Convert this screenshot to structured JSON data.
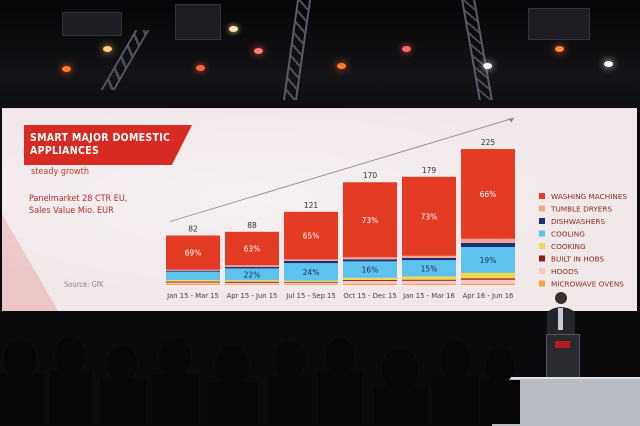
{
  "slide": {
    "title_line1": "SMART MAJOR DOMESTIC",
    "title_line2": "APPLIANCES",
    "subtitle": "steady growth",
    "panel_line1": "Panelmarket 28 CTR EU,",
    "panel_line2": "Sales Value Mio. EUR",
    "source": "Source: GfK"
  },
  "colors": {
    "washing_machines": "#e33b24",
    "tumble_dryers": "#f0a58f",
    "dishwashers": "#1d2f7a",
    "cooling": "#5ec2ee",
    "cooking": "#f2d84a",
    "built_in_hobs": "#8e1b1b",
    "hoods": "#f7c6c8",
    "microwave_ovens": "#f3a13a",
    "banner": "#d62a22",
    "slide_background": "#f1e8ea"
  },
  "chart_data": {
    "type": "bar",
    "stacked": true,
    "categories": [
      "Jan 15 - Mar 15",
      "Apr 15 - Jun 15",
      "Jul 15 - Sep 15",
      "Oct 15 - Dec 15",
      "Jan 15 - Mar 16",
      "Apr 16 - Jun 16"
    ],
    "totals": [
      82,
      88,
      121,
      170,
      179,
      225
    ],
    "ylim": [
      0,
      225
    ],
    "legend_position": "right",
    "trend_arrow": true,
    "grid": false,
    "series": [
      {
        "name": "WASHING MACHINES",
        "color_key": "washing_machines",
        "values": [
          56.6,
          55.4,
          78.7,
          124.1,
          130.7,
          148.5
        ],
        "labels": [
          "69%",
          "63%",
          "65%",
          "73%",
          "73%",
          "66%"
        ]
      },
      {
        "name": "TUMBLE DRYERS",
        "color_key": "tumble_dryers",
        "values": [
          1.6,
          2.6,
          2.4,
          3.4,
          3.6,
          6.8
        ],
        "labels": [
          "",
          "",
          "",
          "",
          "",
          ""
        ]
      },
      {
        "name": "DISHWASHERS",
        "color_key": "dishwashers",
        "values": [
          1.6,
          2.6,
          3.6,
          3.4,
          3.6,
          6.8
        ],
        "labels": [
          "",
          "",
          "",
          "",
          "",
          ""
        ]
      },
      {
        "name": "COOLING",
        "color_key": "cooling",
        "values": [
          13.9,
          19.4,
          29.0,
          27.2,
          26.9,
          42.8
        ],
        "labels": [
          "",
          "22%",
          "24%",
          "16%",
          "15%",
          "19%"
        ]
      },
      {
        "name": "COOKING",
        "color_key": "cooking",
        "values": [
          2.5,
          2.6,
          2.4,
          3.4,
          5.4,
          9.0
        ],
        "labels": [
          "",
          "",
          "",
          "",
          "",
          ""
        ]
      },
      {
        "name": "BUILT IN HOBS",
        "color_key": "built_in_hobs",
        "values": [
          1.6,
          1.8,
          1.2,
          1.7,
          1.8,
          2.3
        ],
        "labels": [
          "",
          "",
          "",
          "",
          "",
          ""
        ]
      },
      {
        "name": "HOODS",
        "color_key": "hoods",
        "values": [
          2.5,
          2.6,
          2.4,
          5.1,
          5.4,
          6.8
        ],
        "labels": [
          "",
          "",
          "",
          "",
          "",
          ""
        ]
      },
      {
        "name": "MICROWAVE OVENS",
        "color_key": "microwave_ovens",
        "values": [
          1.6,
          1.0,
          1.3,
          1.7,
          1.6,
          2.0
        ],
        "labels": [
          "",
          "",
          "",
          "",
          "",
          ""
        ]
      }
    ]
  }
}
